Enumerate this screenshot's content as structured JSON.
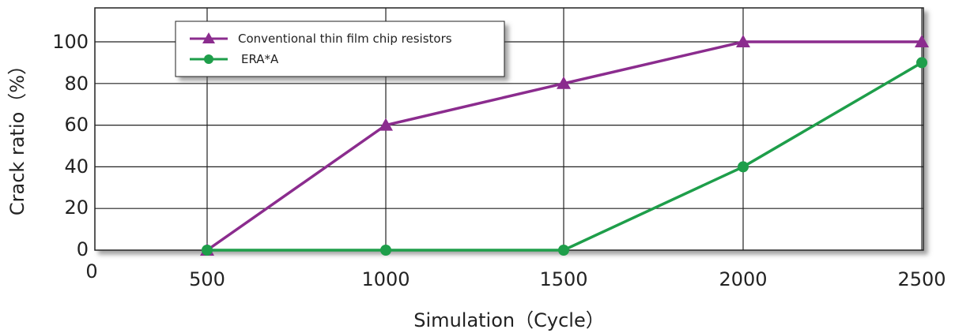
{
  "chart_data": {
    "type": "line",
    "xlabel": "Simulation（Cycle）",
    "ylabel": "Crack ratio（%）",
    "origin_label": "0",
    "x": [
      500,
      1000,
      1500,
      2000,
      2500
    ],
    "x_tick_labels": [
      "500",
      "1000",
      "1500",
      "2000",
      "2500"
    ],
    "y_ticks": [
      0,
      20,
      40,
      60,
      80,
      100
    ],
    "y_tick_labels": [
      "0",
      "20",
      "40",
      "60",
      "80",
      "100"
    ],
    "ylim": [
      0,
      115
    ],
    "grid": true,
    "legend_position": "top-left",
    "series": [
      {
        "name": "Conventional thin film chip resistors",
        "marker": "triangle",
        "color": "#8B2C8E",
        "values": [
          0,
          60,
          80,
          100,
          100
        ]
      },
      {
        "name": "ERA*A",
        "marker": "circle",
        "color": "#1E9E4A",
        "values": [
          0,
          0,
          0,
          40,
          90
        ]
      }
    ]
  }
}
